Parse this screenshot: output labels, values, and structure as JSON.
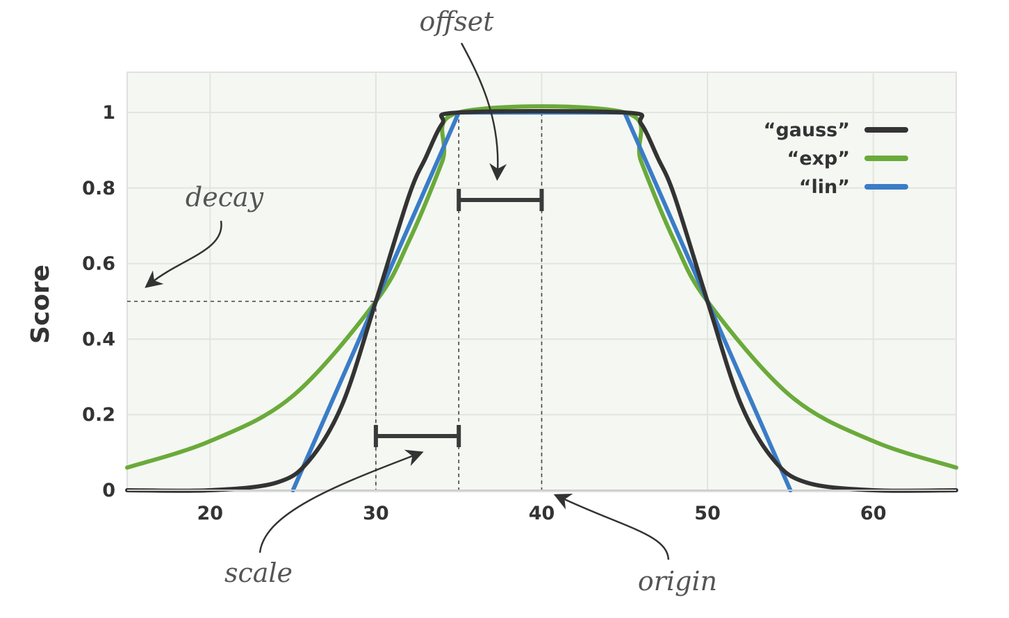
{
  "chart_data": {
    "type": "line",
    "title": "",
    "xlabel": "",
    "ylabel": "Score",
    "xlim": [
      15,
      65
    ],
    "ylim": [
      0,
      1.1
    ],
    "x_ticks": [
      20,
      30,
      40,
      50,
      60
    ],
    "y_ticks": [
      0,
      0.2,
      0.4,
      0.6,
      0.8,
      1
    ],
    "y_tick_labels": [
      "0",
      "0.2",
      "0.4",
      "0.6",
      "0.8",
      "1"
    ],
    "grid": true,
    "legend_position": "top-right",
    "parameters": {
      "origin": 40,
      "offset": 5,
      "scale": 5,
      "decay": 0.5
    },
    "series": [
      {
        "name": "“gauss”",
        "color": "#333333",
        "x": [
          15,
          20,
          24,
          26,
          28,
          30,
          32,
          33,
          34,
          35,
          45,
          46,
          47,
          48,
          50,
          52,
          54,
          56,
          60,
          65
        ],
        "y": [
          0,
          0.0,
          0.02,
          0.08,
          0.23,
          0.5,
          0.78,
          0.88,
          0.97,
          1,
          1,
          0.97,
          0.88,
          0.78,
          0.5,
          0.23,
          0.08,
          0.02,
          0.0,
          0
        ]
      },
      {
        "name": "“exp”",
        "color": "#6aaa3a",
        "x": [
          15,
          20,
          25,
          30,
          32,
          34,
          35,
          45,
          46,
          48,
          50,
          55,
          60,
          65
        ],
        "y": [
          0.06,
          0.13,
          0.25,
          0.5,
          0.66,
          0.87,
          1,
          1,
          0.87,
          0.66,
          0.5,
          0.25,
          0.13,
          0.06
        ]
      },
      {
        "name": "“lin”",
        "color": "#3a7cc8",
        "x": [
          25,
          35,
          45,
          55
        ],
        "y": [
          0,
          1,
          1,
          0
        ]
      }
    ],
    "annotations": [
      {
        "text": "offset"
      },
      {
        "text": "decay"
      },
      {
        "text": "scale"
      },
      {
        "text": "origin"
      }
    ]
  }
}
